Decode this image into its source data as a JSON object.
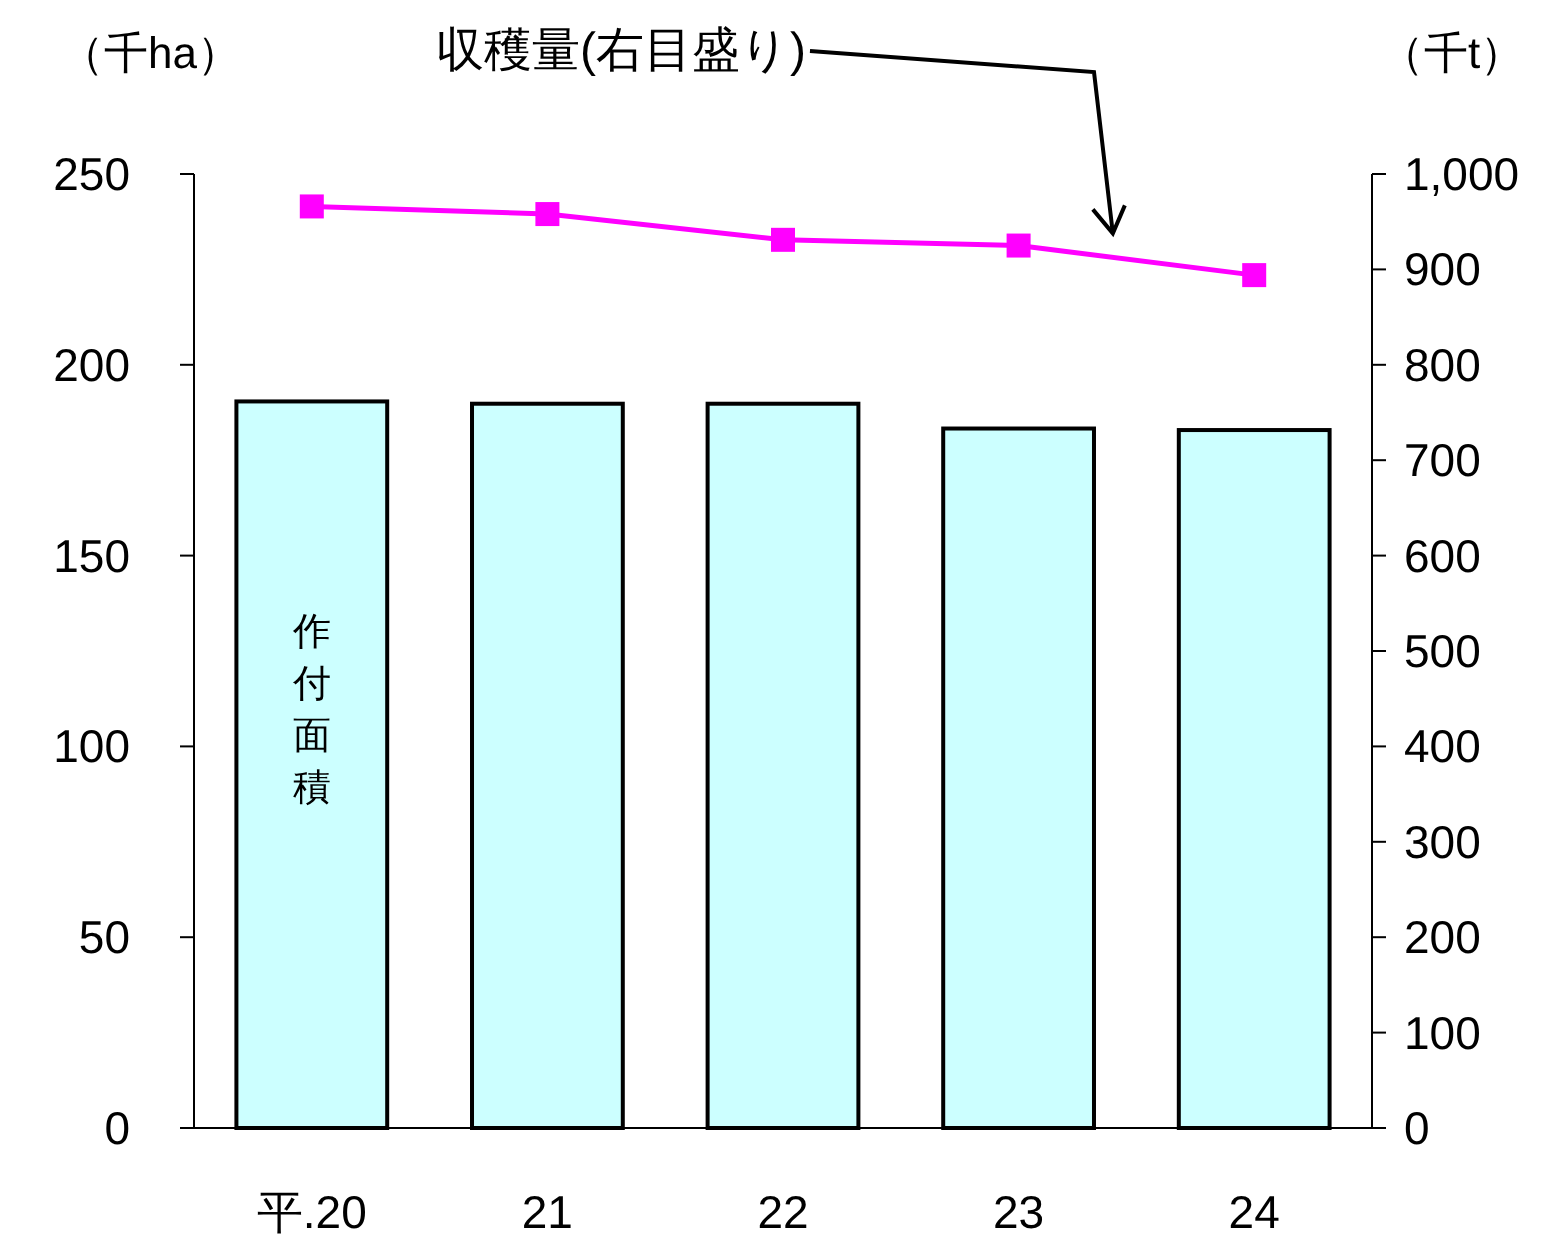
{
  "chart_data": {
    "type": "bar",
    "categories": [
      "平.20",
      "21",
      "22",
      "23",
      "24"
    ],
    "ylabel": "（千ha）",
    "y2label": "（千t）",
    "ylim": [
      0,
      250
    ],
    "yticks": [
      0,
      50,
      100,
      150,
      200,
      250
    ],
    "y2lim": [
      0,
      1000
    ],
    "y2ticks": [
      0,
      100,
      200,
      300,
      400,
      500,
      600,
      700,
      800,
      900,
      {
        "value": 1000,
        "label": "1,000"
      }
    ],
    "series": [
      {
        "name": "作付面積",
        "color": "#ccffff",
        "values": [
          190.4,
          189.8,
          189.8,
          183.3,
          182.9
        ]
      },
      {
        "name": "収穫量(右目盛り)",
        "type": "line",
        "axis": "y2",
        "color": "#ff00ff",
        "marker": "square",
        "values": [
          966,
          958,
          931,
          925,
          894
        ]
      }
    ],
    "grid": false,
    "legend": false
  }
}
